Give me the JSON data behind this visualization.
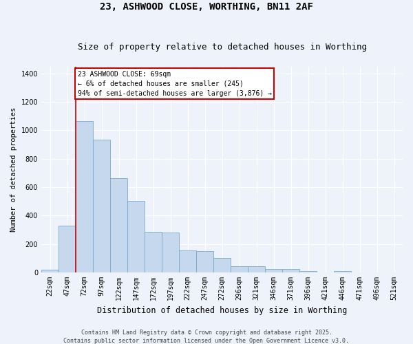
{
  "title": "23, ASHWOOD CLOSE, WORTHING, BN11 2AF",
  "subtitle": "Size of property relative to detached houses in Worthing",
  "xlabel": "Distribution of detached houses by size in Worthing",
  "ylabel": "Number of detached properties",
  "background_color": "#eef2fa",
  "bar_color": "#c5d8ee",
  "bar_edge_color": "#7aaaca",
  "categories": [
    "22sqm",
    "47sqm",
    "72sqm",
    "97sqm",
    "122sqm",
    "147sqm",
    "172sqm",
    "197sqm",
    "222sqm",
    "247sqm",
    "272sqm",
    "296sqm",
    "321sqm",
    "346sqm",
    "371sqm",
    "396sqm",
    "421sqm",
    "446sqm",
    "471sqm",
    "496sqm",
    "521sqm"
  ],
  "values": [
    20,
    330,
    1065,
    935,
    665,
    505,
    285,
    280,
    155,
    150,
    100,
    45,
    45,
    25,
    25,
    10,
    0,
    10,
    0,
    0,
    0
  ],
  "vline_x_idx": 2,
  "annotation_text": "23 ASHWOOD CLOSE: 69sqm\n← 6% of detached houses are smaller (245)\n94% of semi-detached houses are larger (3,876) →",
  "annotation_box_color": "#ffffff",
  "annotation_box_edge": "#cc0000",
  "vline_color": "#cc0000",
  "footer": "Contains HM Land Registry data © Crown copyright and database right 2025.\nContains public sector information licensed under the Open Government Licence v3.0.",
  "ylim": [
    0,
    1450
  ],
  "title_fontsize": 10,
  "subtitle_fontsize": 9,
  "ylabel_fontsize": 7.5,
  "xlabel_fontsize": 8.5,
  "tick_fontsize": 7,
  "footer_fontsize": 6
}
